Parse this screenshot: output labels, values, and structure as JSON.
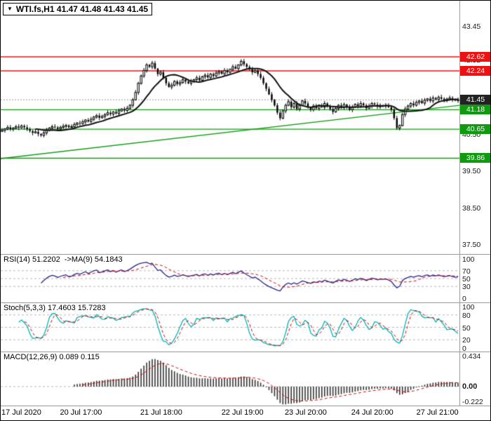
{
  "title_box": {
    "dropdown_icon": "▼",
    "symbol_text": "WTI.fs,H1 41.47 41.48 41.43 41.45"
  },
  "chart_data": {
    "type": "candlestick",
    "symbol": "WTI.fs,H1",
    "timeframe": "H1",
    "ohlc_display": {
      "open": 41.47,
      "high": 41.48,
      "low": 41.43,
      "close": 41.45
    },
    "close_series": [
      40.62,
      40.66,
      40.7,
      40.65,
      40.68,
      40.72,
      40.69,
      40.74,
      40.7,
      40.65,
      40.6,
      40.55,
      40.58,
      40.52,
      40.48,
      40.55,
      40.62,
      40.68,
      40.72,
      40.7,
      40.66,
      40.7,
      40.73,
      40.75,
      40.7,
      40.72,
      40.78,
      40.82,
      40.8,
      40.85,
      40.9,
      40.86,
      40.92,
      40.98,
      41.02,
      40.96,
      41.0,
      41.05,
      41.1,
      41.06,
      41.12,
      41.08,
      41.15,
      41.2,
      41.16,
      41.22,
      41.3,
      41.45,
      41.65,
      41.9,
      42.1,
      42.25,
      42.4,
      42.35,
      42.45,
      42.3,
      42.15,
      42.2,
      42.05,
      41.9,
      41.8,
      41.85,
      41.95,
      41.88,
      41.92,
      42.0,
      41.95,
      41.9,
      41.96,
      42.0,
      42.05,
      41.98,
      42.08,
      42.12,
      42.06,
      42.15,
      42.1,
      42.18,
      42.22,
      42.16,
      42.25,
      42.2,
      42.28,
      42.35,
      42.3,
      42.4,
      42.5,
      42.42,
      42.35,
      42.28,
      42.2,
      42.25,
      42.15,
      42.05,
      41.9,
      41.75,
      41.6,
      41.45,
      41.3,
      41.1,
      40.95,
      41.15,
      41.3,
      41.4,
      41.25,
      41.35,
      41.2,
      41.3,
      41.42,
      41.35,
      41.25,
      41.18,
      41.28,
      41.22,
      41.3,
      41.25,
      41.35,
      41.28,
      41.2,
      41.12,
      41.22,
      41.3,
      41.24,
      41.32,
      41.26,
      41.18,
      41.25,
      41.33,
      41.28,
      41.35,
      41.3,
      41.22,
      41.28,
      41.35,
      41.32,
      41.26,
      41.3,
      41.28,
      41.3,
      41.25,
      41.18,
      40.95,
      40.68,
      40.75,
      41.05,
      41.2,
      41.28,
      41.35,
      41.3,
      41.38,
      41.42,
      41.36,
      41.44,
      41.48,
      41.42,
      41.5,
      41.46,
      41.52,
      41.48,
      41.44,
      41.47,
      41.5,
      41.46,
      41.43,
      41.45
    ],
    "ma_period": 13,
    "y_axis": {
      "min": 37.25,
      "max": 44.15,
      "ticks": [
        {
          "label": "43.45",
          "value": 43.45
        },
        {
          "label": "42.52",
          "value": 42.52
        },
        {
          "label": "40.50",
          "value": 40.5
        },
        {
          "label": "39.50",
          "value": 39.5
        },
        {
          "label": "38.50",
          "value": 38.5
        },
        {
          "label": "37.50",
          "value": 37.5
        }
      ]
    },
    "level_lines": [
      {
        "value": 42.62,
        "color": "#ee1111"
      },
      {
        "value": 42.24,
        "color": "#ee1111"
      },
      {
        "value": 41.18,
        "color": "#0f9b0f"
      },
      {
        "value": 40.65,
        "color": "#0f9b0f"
      },
      {
        "value": 39.86,
        "color": "#0f9b0f"
      }
    ],
    "trendline": {
      "start_value": 39.85,
      "end_value": 41.3,
      "color": "#0f9b0f"
    },
    "current_price_line": {
      "value": 41.45,
      "color": "#999999"
    },
    "price_badges": [
      {
        "label": "42.62",
        "value": 42.62,
        "color": "#ee1111"
      },
      {
        "label": "42.24",
        "value": 42.24,
        "color": "#ee1111"
      },
      {
        "label": "41.45",
        "value": 41.45,
        "color": "#222222"
      },
      {
        "label": "41.18",
        "value": 41.18,
        "color": "#0f9b0f"
      },
      {
        "label": "40.65",
        "value": 40.65,
        "color": "#0f9b0f"
      },
      {
        "label": "39.86",
        "value": 39.86,
        "color": "#0f9b0f"
      }
    ],
    "x_labels": [
      {
        "label": "17 Jul 2020",
        "pos": 0.045
      },
      {
        "label": "20 Jul 17:00",
        "pos": 0.175
      },
      {
        "label": "21 Jul 18:00",
        "pos": 0.35
      },
      {
        "label": "22 Jul 19:00",
        "pos": 0.527
      },
      {
        "label": "23 Jul 20:00",
        "pos": 0.665
      },
      {
        "label": "24 Jul 20:00",
        "pos": 0.81
      },
      {
        "label": "27 Jul 21:00",
        "pos": 0.952
      }
    ],
    "indicators": {
      "rsi": {
        "label": "RSI(14) 51.2202  ->MA(9) 54.1843",
        "period": 14,
        "ma_period": 9,
        "values_display": {
          "rsi": 51.2202,
          "ma": 54.1843
        },
        "ticks": [
          {
            "label": "100",
            "value": 100
          },
          {
            "label": "70",
            "value": 70
          },
          {
            "label": "50",
            "value": 50
          },
          {
            "label": "30",
            "value": 30
          },
          {
            "label": "0",
            "value": 0
          }
        ],
        "grid_levels": [
          70,
          50,
          30
        ],
        "line_color": "#26268c",
        "ma_color": "#cc0000"
      },
      "stoch": {
        "label": "Stoch(5,3,3) 17.4603 15.7283",
        "k_period": 5,
        "slowing": 3,
        "d_period": 3,
        "values_display": {
          "k": 17.4603,
          "d": 15.7283
        },
        "ticks": [
          {
            "label": "100",
            "value": 100
          },
          {
            "label": "80",
            "value": 80
          },
          {
            "label": "50",
            "value": 50
          },
          {
            "label": "20",
            "value": 20
          },
          {
            "label": "0",
            "value": 0
          }
        ],
        "grid_levels": [
          80,
          50,
          20
        ],
        "k_color": "#00b3b3",
        "d_color": "#cc0000"
      },
      "macd": {
        "label": "MACD(12,26,9) 0.089 0.115",
        "fast": 12,
        "slow": 26,
        "signal": 9,
        "values_display": {
          "macd": 0.089,
          "signal": 0.115
        },
        "ticks": [
          {
            "label": "0.434",
            "value": 0.434,
            "bold": false
          },
          {
            "label": "0.00",
            "value": 0,
            "bold": true
          },
          {
            "label": "-0.222",
            "value": -0.222,
            "bold": false
          }
        ],
        "range": {
          "min": -0.23,
          "max": 0.45
        },
        "hist_color": "#333333",
        "signal_color": "#cc0000"
      }
    }
  }
}
